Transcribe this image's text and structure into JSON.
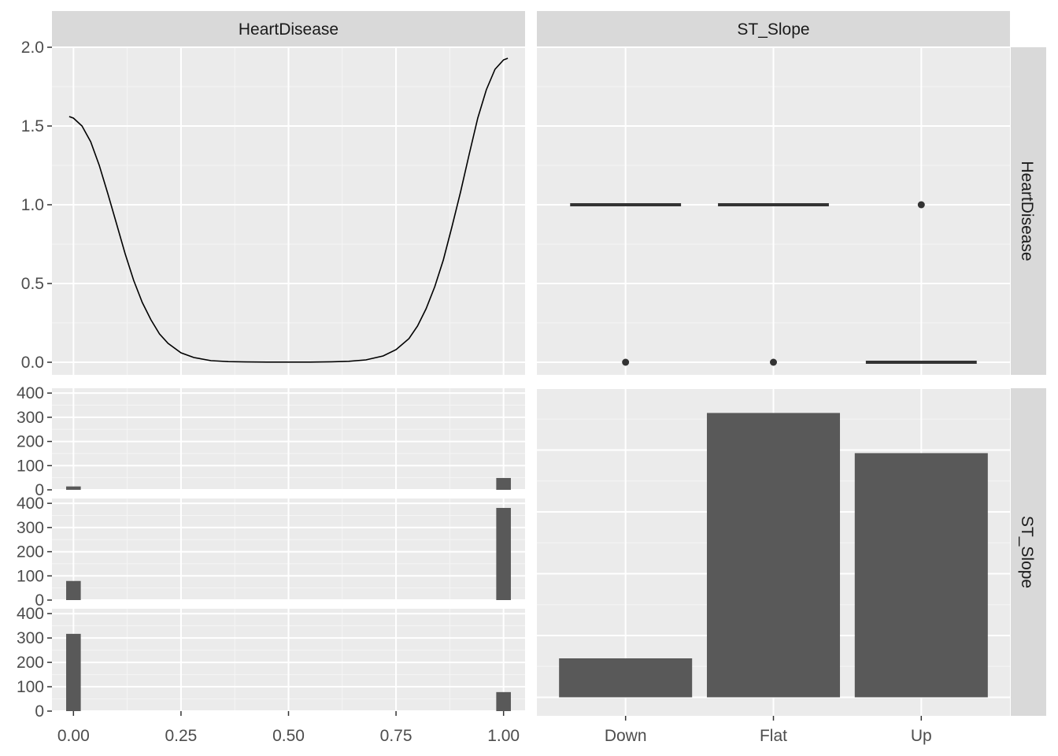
{
  "chart_data": [
    {
      "panel": "HeartDisease x HeartDisease",
      "type": "line",
      "column_strip": "HeartDisease",
      "x_ticks": [
        "0.00",
        "0.25",
        "0.50",
        "0.75",
        "1.00"
      ],
      "y_ticks": [
        "0.0",
        "0.5",
        "1.0",
        "1.5",
        "2.0"
      ],
      "xlim": [
        -0.05,
        1.05
      ],
      "ylim": [
        -0.08,
        2.0
      ],
      "series": [
        {
          "x": [
            -0.01,
            0.0,
            0.02,
            0.04,
            0.06,
            0.08,
            0.1,
            0.12,
            0.14,
            0.16,
            0.18,
            0.2,
            0.22,
            0.25,
            0.28,
            0.32,
            0.36,
            0.4,
            0.45,
            0.5,
            0.55,
            0.6,
            0.64,
            0.68,
            0.72,
            0.75,
            0.78,
            0.8,
            0.82,
            0.84,
            0.86,
            0.88,
            0.9,
            0.92,
            0.94,
            0.96,
            0.98,
            1.0,
            1.01
          ],
          "y": [
            1.56,
            1.55,
            1.5,
            1.4,
            1.25,
            1.07,
            0.88,
            0.69,
            0.52,
            0.38,
            0.27,
            0.18,
            0.12,
            0.06,
            0.03,
            0.01,
            0.004,
            0.002,
            0.001,
            0.001,
            0.001,
            0.003,
            0.006,
            0.015,
            0.04,
            0.08,
            0.15,
            0.23,
            0.34,
            0.48,
            0.65,
            0.86,
            1.08,
            1.32,
            1.55,
            1.73,
            1.86,
            1.92,
            1.93
          ]
        }
      ]
    },
    {
      "panel": "ST_Slope x HeartDisease",
      "type": "boxplot",
      "column_strip": "ST_Slope",
      "row_strip": "HeartDisease",
      "categories": [
        "Down",
        "Flat",
        "Up"
      ],
      "median": [
        1,
        1,
        0
      ],
      "outliers": [
        [
          0
        ],
        [
          0
        ],
        [
          1
        ]
      ],
      "ylim": [
        -0.08,
        2.0
      ]
    },
    {
      "panel": "HeartDisease x ST_Slope",
      "type": "bar",
      "description": "histograms of HeartDisease faceted by ST_Slope (Down, Flat, Up)",
      "x_ticks": [
        "0.00",
        "0.25",
        "0.50",
        "0.75",
        "1.00"
      ],
      "y_ticks": [
        "0",
        "100",
        "200",
        "300",
        "400"
      ],
      "ylim": [
        0,
        420
      ],
      "xlim": [
        -0.05,
        1.05
      ],
      "bin_width": 0.034,
      "facets": [
        {
          "facet": "Down",
          "bins": [
            {
              "x": 0,
              "count": 14
            },
            {
              "x": 1,
              "count": 49
            }
          ]
        },
        {
          "facet": "Flat",
          "bins": [
            {
              "x": 0,
              "count": 79
            },
            {
              "x": 1,
              "count": 381
            }
          ]
        },
        {
          "facet": "Up",
          "bins": [
            {
              "x": 0,
              "count": 317
            },
            {
              "x": 1,
              "count": 78
            }
          ]
        }
      ]
    },
    {
      "panel": "ST_Slope x ST_Slope",
      "type": "bar",
      "row_strip": "ST_Slope",
      "categories": [
        "Down",
        "Flat",
        "Up"
      ],
      "values": [
        63,
        460,
        395
      ],
      "ylim": [
        -30,
        500
      ]
    }
  ]
}
